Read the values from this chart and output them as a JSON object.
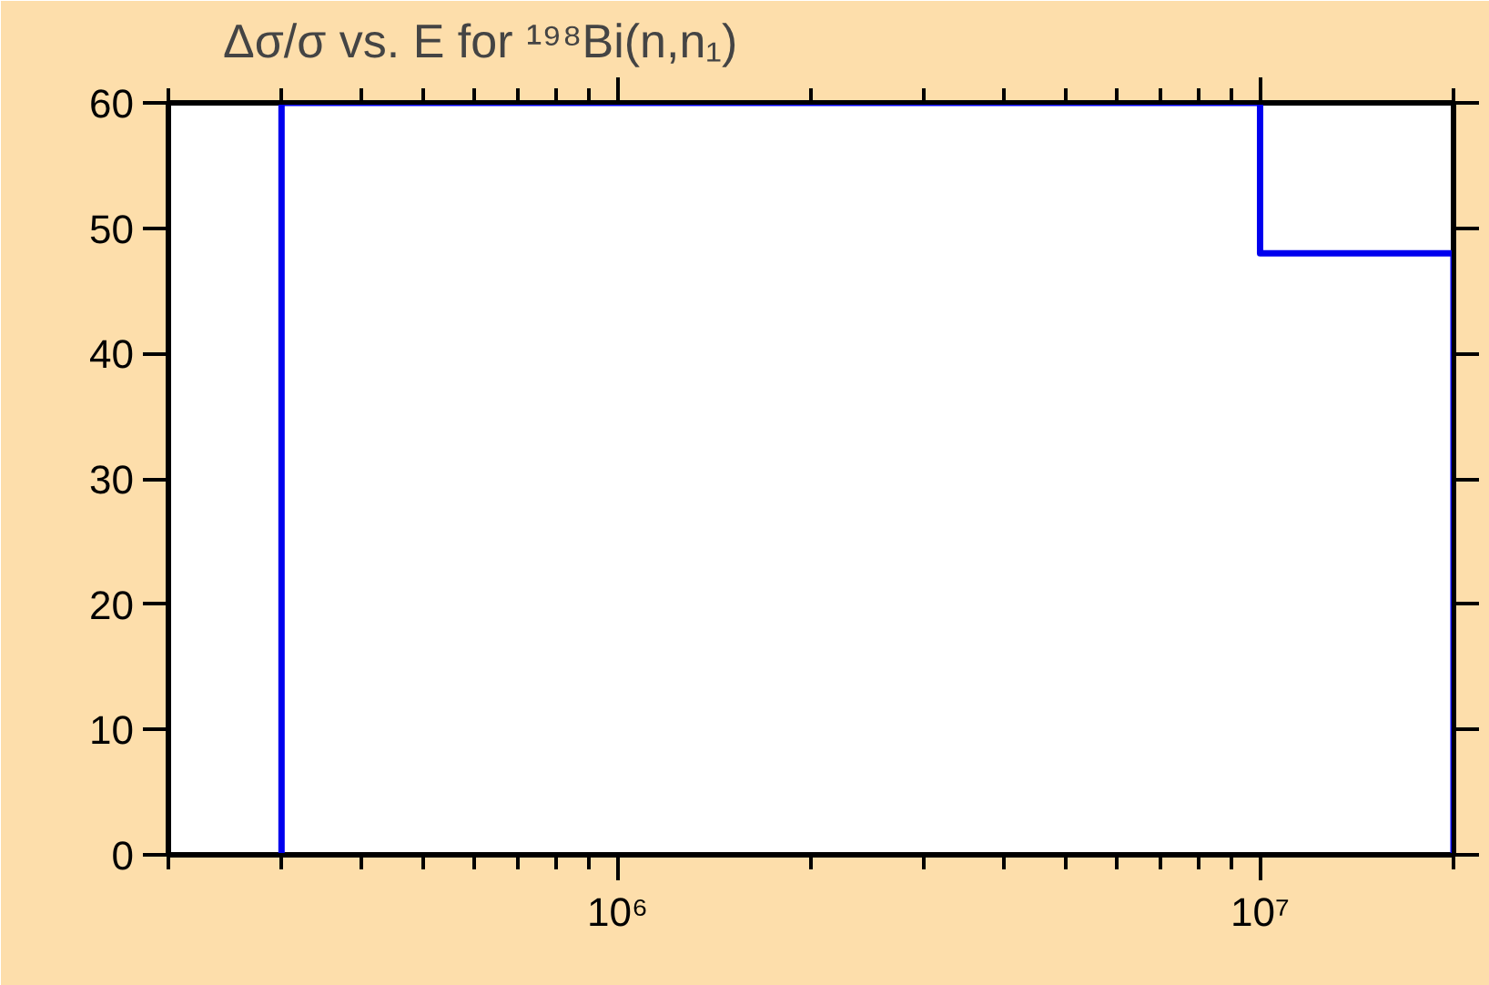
{
  "chart_data": {
    "type": "line",
    "title": "Δσ/σ vs. E for ¹⁹⁸Bi(n,n₁)",
    "log": "x",
    "xlim": [
      200000,
      20000000
    ],
    "ylim": [
      0,
      60
    ],
    "xticks": [
      {
        "value": 1000000,
        "label": "10⁶"
      },
      {
        "value": 10000000,
        "label": "10⁷"
      }
    ],
    "yticks": [
      0,
      10,
      20,
      30,
      40,
      50,
      60
    ],
    "series": [
      {
        "color": "#0000ee",
        "x": [
          300000,
          300000,
          10000000,
          10000000,
          20000000,
          20000000
        ],
        "values": [
          0,
          60,
          60,
          48,
          48,
          0
        ]
      }
    ]
  }
}
